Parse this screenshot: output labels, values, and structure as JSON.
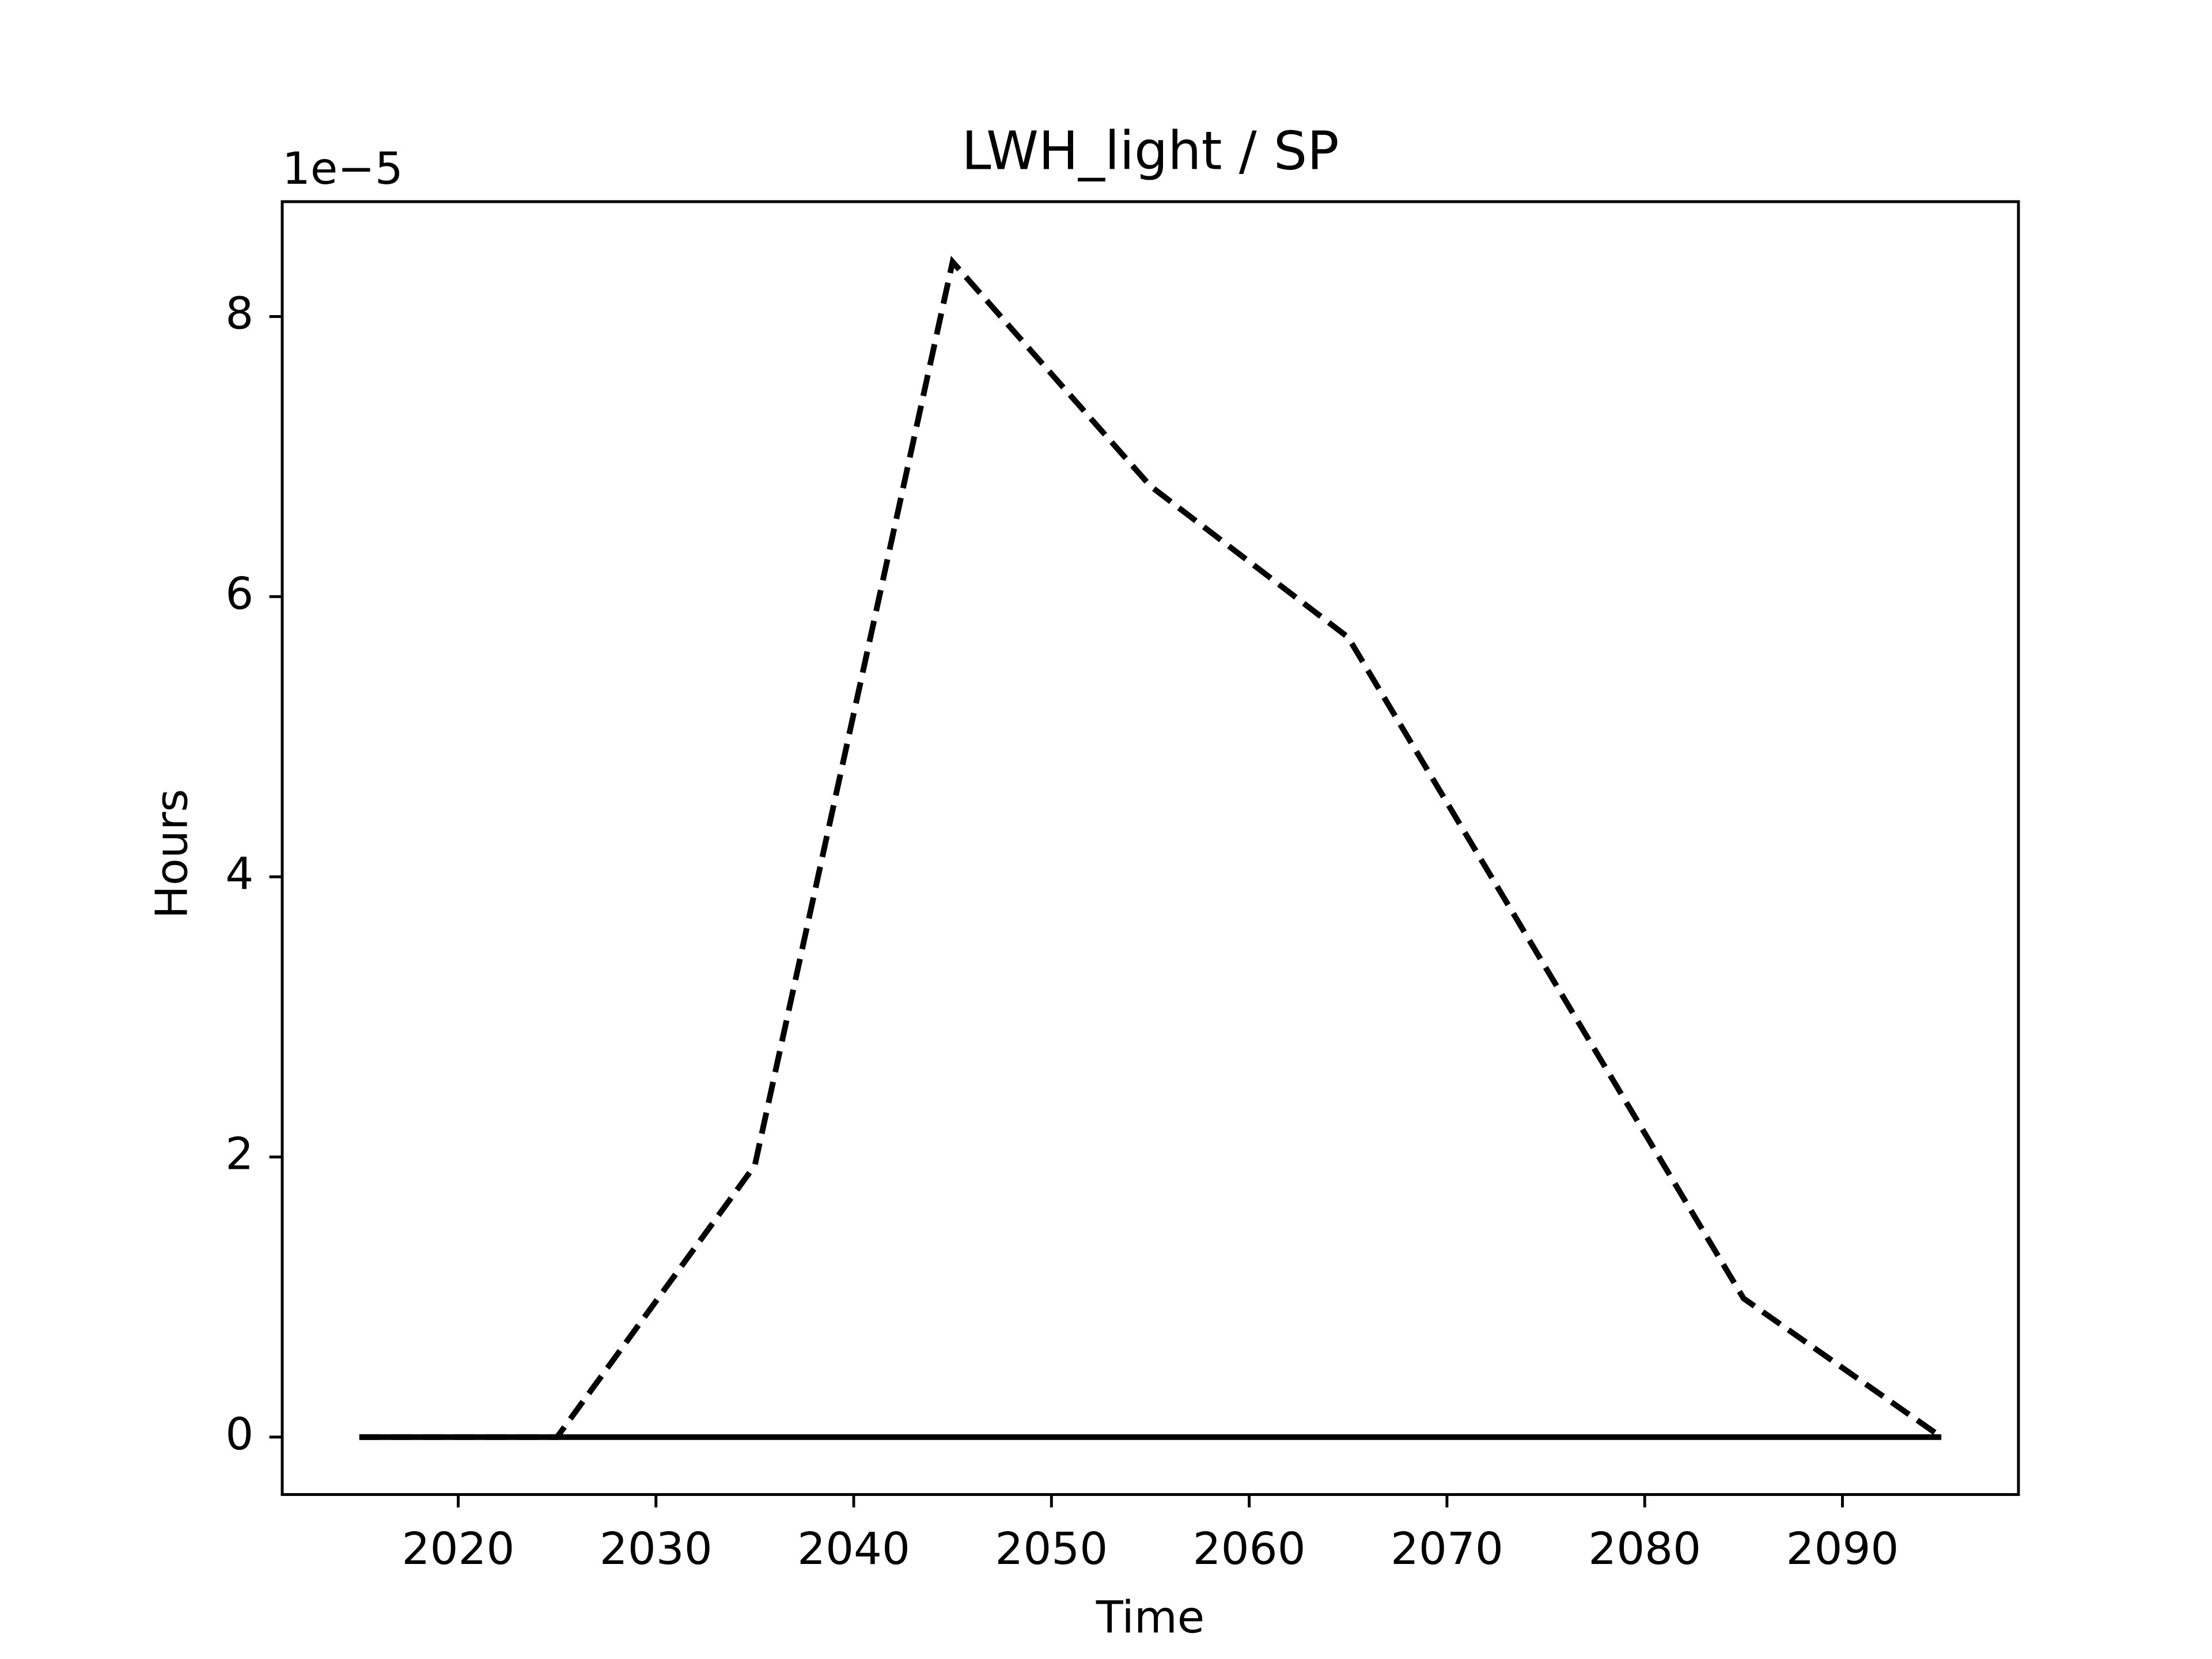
{
  "chart_data": {
    "type": "line",
    "title": "LWH_light / SP",
    "x_label": "Time",
    "y_label": "Hours",
    "y_offset_label": "1e−5",
    "x": [
      2015,
      2025,
      2035,
      2045,
      2055,
      2065,
      2075,
      2085,
      2095
    ],
    "series": [
      {
        "color": "#000000",
        "dash": "dashed",
        "values": [
          0,
          0,
          1.94e-05,
          8.39e-05,
          6.79e-05,
          5.71e-05,
          3.35e-05,
          9.9e-06,
          0
        ]
      },
      {
        "color": "#000000",
        "dash": "solid",
        "values": [
          0,
          0,
          0,
          0,
          0,
          0,
          0,
          0,
          0
        ]
      }
    ],
    "xlim": [
      2011.1,
      2098.9
    ],
    "xticks": [
      2020,
      2030,
      2040,
      2050,
      2060,
      2070,
      2080,
      2090
    ],
    "ylim": [
      -4.1e-06,
      8.82e-05
    ],
    "yticks": [
      {
        "value": 0,
        "label": "0"
      },
      {
        "value": 2e-05,
        "label": "2"
      },
      {
        "value": 4e-05,
        "label": "4"
      },
      {
        "value": 6e-05,
        "label": "6"
      },
      {
        "value": 8e-05,
        "label": "8"
      }
    ],
    "grid": false
  }
}
